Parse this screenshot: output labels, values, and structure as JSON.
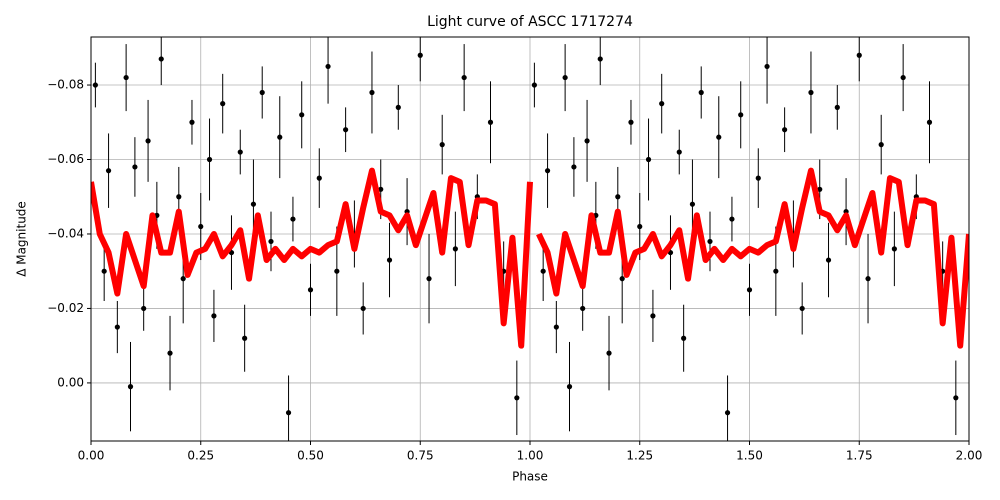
{
  "chart_data": {
    "type": "errorbar-line",
    "title": "Light curve of ASCC 1717274",
    "xlabel": "Phase",
    "ylabel": "Δ Magnitude",
    "xlim": [
      0,
      2
    ],
    "ylim": [
      0.0156,
      -0.0929
    ],
    "xticks": [
      {
        "value": 0,
        "label": "0.00"
      },
      {
        "value": 0.25,
        "label": "0.25"
      },
      {
        "value": 0.5,
        "label": "0.50"
      },
      {
        "value": 0.75,
        "label": "0.75"
      },
      {
        "value": 1,
        "label": "1.00"
      },
      {
        "value": 1.25,
        "label": "1.25"
      },
      {
        "value": 1.5,
        "label": "1.50"
      },
      {
        "value": 1.75,
        "label": "1.75"
      },
      {
        "value": 2,
        "label": "2.00"
      }
    ],
    "yticks": [
      {
        "value": -0.08,
        "label": "−0.08"
      },
      {
        "value": -0.06,
        "label": "−0.06"
      },
      {
        "value": -0.04,
        "label": "−0.04"
      },
      {
        "value": -0.02,
        "label": "−0.02"
      },
      {
        "value": 0,
        "label": "0.00"
      }
    ],
    "grid": true,
    "points": {
      "color": "#000000",
      "x": [
        0.01,
        0.03,
        0.04,
        0.06,
        0.08,
        0.09,
        0.1,
        0.12,
        0.13,
        0.15,
        0.16,
        0.18,
        0.2,
        0.21,
        0.23,
        0.25,
        0.27,
        0.28,
        0.3,
        0.32,
        0.34,
        0.35,
        0.37,
        0.39,
        0.41,
        0.43,
        0.45,
        0.46,
        0.48,
        0.5,
        0.52,
        0.54,
        0.56,
        0.58,
        0.6,
        0.62,
        0.64,
        0.66,
        0.68,
        0.7,
        0.72,
        0.75,
        0.77,
        0.8,
        0.83,
        0.85,
        0.88,
        0.91,
        0.94,
        0.97,
        1.01,
        1.03,
        1.04,
        1.06,
        1.08,
        1.09,
        1.1,
        1.12,
        1.13,
        1.15,
        1.16,
        1.18,
        1.2,
        1.21,
        1.23,
        1.25,
        1.27,
        1.28,
        1.3,
        1.32,
        1.34,
        1.35,
        1.37,
        1.39,
        1.41,
        1.43,
        1.45,
        1.46,
        1.48,
        1.5,
        1.52,
        1.54,
        1.56,
        1.58,
        1.6,
        1.62,
        1.64,
        1.66,
        1.68,
        1.7,
        1.72,
        1.75,
        1.77,
        1.8,
        1.83,
        1.85,
        1.88,
        1.91,
        1.94,
        1.97
      ],
      "values": [
        -0.08,
        -0.03,
        -0.057,
        -0.015,
        -0.082,
        0.001,
        -0.058,
        -0.02,
        -0.065,
        -0.045,
        -0.087,
        -0.008,
        -0.05,
        -0.028,
        -0.07,
        -0.042,
        -0.06,
        -0.018,
        -0.075,
        -0.035,
        -0.062,
        -0.012,
        -0.048,
        -0.078,
        -0.038,
        -0.066,
        0.008,
        -0.044,
        -0.072,
        -0.025,
        -0.055,
        -0.085,
        -0.03,
        -0.068,
        -0.04,
        -0.02,
        -0.078,
        -0.052,
        -0.033,
        -0.074,
        -0.046,
        -0.088,
        -0.028,
        -0.064,
        -0.036,
        -0.082,
        -0.05,
        -0.07,
        -0.03,
        0.004,
        -0.08,
        -0.03,
        -0.057,
        -0.015,
        -0.082,
        0.001,
        -0.058,
        -0.02,
        -0.065,
        -0.045,
        -0.087,
        -0.008,
        -0.05,
        -0.028,
        -0.07,
        -0.042,
        -0.06,
        -0.018,
        -0.075,
        -0.035,
        -0.062,
        -0.012,
        -0.048,
        -0.078,
        -0.038,
        -0.066,
        0.008,
        -0.044,
        -0.072,
        -0.025,
        -0.055,
        -0.085,
        -0.03,
        -0.068,
        -0.04,
        -0.02,
        -0.078,
        -0.052,
        -0.033,
        -0.074,
        -0.046,
        -0.088,
        -0.028,
        -0.064,
        -0.036,
        -0.082,
        -0.05,
        -0.07,
        -0.03,
        0.004
      ],
      "errors": [
        0.006,
        0.008,
        0.01,
        0.007,
        0.009,
        0.012,
        0.008,
        0.006,
        0.011,
        0.009,
        0.007,
        0.01,
        0.008,
        0.012,
        0.006,
        0.009,
        0.011,
        0.007,
        0.008,
        0.01,
        0.006,
        0.009,
        0.012,
        0.007,
        0.008,
        0.011,
        0.01,
        0.006,
        0.009,
        0.007,
        0.008,
        0.01,
        0.012,
        0.006,
        0.009,
        0.007,
        0.011,
        0.008,
        0.01,
        0.006,
        0.009,
        0.007,
        0.012,
        0.008,
        0.01,
        0.009,
        0.006,
        0.011,
        0.008,
        0.01,
        0.006,
        0.008,
        0.01,
        0.007,
        0.009,
        0.012,
        0.008,
        0.006,
        0.011,
        0.009,
        0.007,
        0.01,
        0.008,
        0.012,
        0.006,
        0.009,
        0.011,
        0.007,
        0.008,
        0.01,
        0.006,
        0.009,
        0.012,
        0.007,
        0.008,
        0.011,
        0.01,
        0.006,
        0.009,
        0.007,
        0.008,
        0.01,
        0.012,
        0.006,
        0.009,
        0.007,
        0.011,
        0.008,
        0.01,
        0.006,
        0.009,
        0.007,
        0.012,
        0.008,
        0.01,
        0.009,
        0.006,
        0.011,
        0.008,
        0.01
      ]
    },
    "binned": {
      "color": "#ff0000",
      "x": [
        0.0,
        0.02,
        0.04,
        0.06,
        0.08,
        0.1,
        0.12,
        0.14,
        0.16,
        0.18,
        0.2,
        0.22,
        0.24,
        0.26,
        0.28,
        0.3,
        0.32,
        0.34,
        0.36,
        0.38,
        0.4,
        0.42,
        0.44,
        0.46,
        0.48,
        0.5,
        0.52,
        0.54,
        0.56,
        0.58,
        0.6,
        0.62,
        0.64,
        0.66,
        0.68,
        0.7,
        0.72,
        0.74,
        0.76,
        0.78,
        0.8,
        0.82,
        0.84,
        0.86,
        0.88,
        0.9,
        0.92,
        0.94,
        0.96,
        0.98,
        1.0,
        1.01,
        1.02,
        1.04,
        1.06,
        1.08,
        1.1,
        1.12,
        1.14,
        1.16,
        1.18,
        1.2,
        1.22,
        1.24,
        1.26,
        1.28,
        1.3,
        1.32,
        1.34,
        1.36,
        1.38,
        1.4,
        1.42,
        1.44,
        1.46,
        1.48,
        1.5,
        1.52,
        1.54,
        1.56,
        1.58,
        1.6,
        1.62,
        1.64,
        1.66,
        1.68,
        1.7,
        1.72,
        1.74,
        1.76,
        1.78,
        1.8,
        1.82,
        1.84,
        1.86,
        1.88,
        1.9,
        1.92,
        1.94,
        1.96,
        1.98,
        2.0
      ],
      "values": [
        -0.054,
        -0.04,
        -0.035,
        -0.024,
        -0.04,
        -0.033,
        -0.026,
        -0.045,
        -0.035,
        -0.035,
        -0.046,
        -0.029,
        -0.035,
        -0.036,
        -0.04,
        -0.034,
        -0.037,
        -0.041,
        -0.028,
        -0.045,
        -0.033,
        -0.036,
        -0.033,
        -0.036,
        -0.034,
        -0.036,
        -0.035,
        -0.037,
        -0.038,
        -0.048,
        -0.036,
        -0.047,
        -0.057,
        -0.046,
        -0.045,
        -0.041,
        -0.045,
        -0.037,
        -0.044,
        -0.051,
        -0.035,
        -0.055,
        -0.054,
        -0.037,
        -0.049,
        -0.049,
        -0.048,
        -0.016,
        -0.039,
        -0.01,
        -0.054,
        null,
        -0.04,
        -0.035,
        -0.024,
        -0.04,
        -0.033,
        -0.026,
        -0.045,
        -0.035,
        -0.035,
        -0.046,
        -0.029,
        -0.035,
        -0.036,
        -0.04,
        -0.034,
        -0.037,
        -0.041,
        -0.028,
        -0.045,
        -0.033,
        -0.036,
        -0.033,
        -0.036,
        -0.034,
        -0.036,
        -0.035,
        -0.037,
        -0.038,
        -0.048,
        -0.036,
        -0.047,
        -0.057,
        -0.046,
        -0.045,
        -0.041,
        -0.045,
        -0.037,
        -0.044,
        -0.051,
        -0.035,
        -0.055,
        -0.054,
        -0.037,
        -0.049,
        -0.049,
        -0.048,
        -0.016,
        -0.039,
        -0.01,
        -0.04
      ]
    }
  }
}
